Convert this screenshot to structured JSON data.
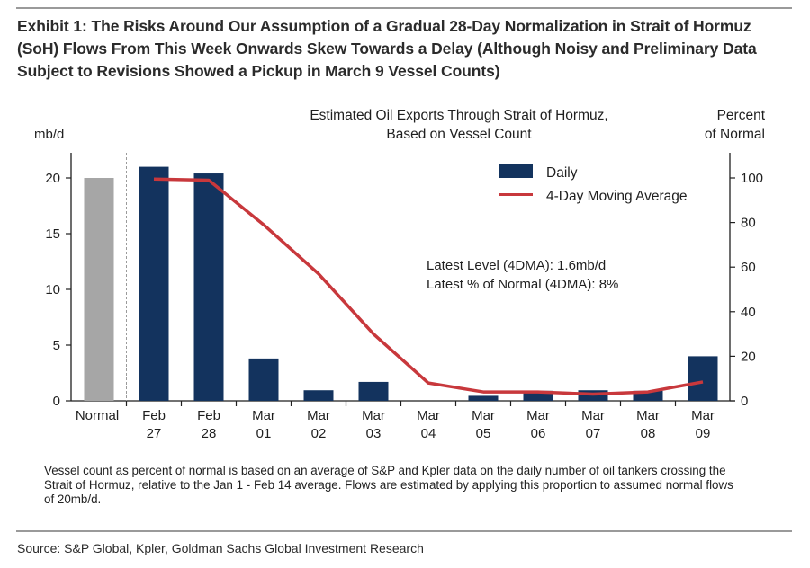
{
  "exhibit_title": "Exhibit 1: The Risks Around Our Assumption of a Gradual 28-Day Normalization in Strait of Hormuz (SoH) Flows From This Week Onwards Skew Towards a Delay (Although Noisy and Preliminary Data Subject to Revisions Showed a Pickup in March 9 Vessel Counts)",
  "footnote": "Vessel count as percent of normal is based on an average of S&P and Kpler data on the daily number of oil tankers crossing the Strait of Hormuz, relative to the Jan 1 - Feb 14 average. Flows are estimated by applying this proportion to assumed normal flows of 20mb/d.",
  "source": "Source: S&P Global, Kpler, Goldman Sachs Global Investment Research",
  "chart_data": {
    "type": "bar",
    "title_lines": [
      "Estimated Oil Exports Through Strait of Hormuz,",
      "Based on Vessel Count"
    ],
    "ylabel_left": "mb/d",
    "ylabel_right_lines": [
      "Percent",
      "of Normal"
    ],
    "ylim_left": [
      0,
      22
    ],
    "ylim_right": [
      0,
      110
    ],
    "yticks_left": [
      0,
      5,
      10,
      15,
      20
    ],
    "yticks_right": [
      0,
      20,
      40,
      60,
      80,
      100
    ],
    "grid": false,
    "legend_position": "top-right",
    "categories": [
      {
        "line1": "Normal",
        "line2": ""
      },
      {
        "line1": "Feb",
        "line2": "27"
      },
      {
        "line1": "Feb",
        "line2": "28"
      },
      {
        "line1": "Mar",
        "line2": "01"
      },
      {
        "line1": "Mar",
        "line2": "02"
      },
      {
        "line1": "Mar",
        "line2": "03"
      },
      {
        "line1": "Mar",
        "line2": "04"
      },
      {
        "line1": "Mar",
        "line2": "05"
      },
      {
        "line1": "Mar",
        "line2": "06"
      },
      {
        "line1": "Mar",
        "line2": "07"
      },
      {
        "line1": "Mar",
        "line2": "08"
      },
      {
        "line1": "Mar",
        "line2": "09"
      }
    ],
    "series": [
      {
        "name": "Normal",
        "type": "bar",
        "axis": "left",
        "color": "#a6a6a6",
        "values": [
          20,
          null,
          null,
          null,
          null,
          null,
          null,
          null,
          null,
          null,
          null,
          null
        ]
      },
      {
        "name": "Daily",
        "type": "bar",
        "axis": "left",
        "color": "#13335e",
        "values": [
          null,
          21.0,
          20.4,
          3.8,
          0.95,
          1.7,
          0.0,
          0.45,
          0.9,
          0.95,
          0.9,
          4.0
        ]
      },
      {
        "name": "4-Day Moving Average",
        "type": "line",
        "axis": "right",
        "color": "#c8383c",
        "values": [
          null,
          99.5,
          99,
          79,
          57,
          30,
          8,
          4,
          4,
          3,
          4,
          8.5
        ]
      }
    ],
    "legend": [
      {
        "label": "Daily",
        "kind": "bar",
        "color": "#13335e"
      },
      {
        "label": "4-Day Moving Average",
        "kind": "line",
        "color": "#c8383c"
      }
    ],
    "annotations": [
      "Latest Level (4DMA): 1.6mb/d",
      "Latest % of Normal (4DMA): 8%"
    ]
  }
}
